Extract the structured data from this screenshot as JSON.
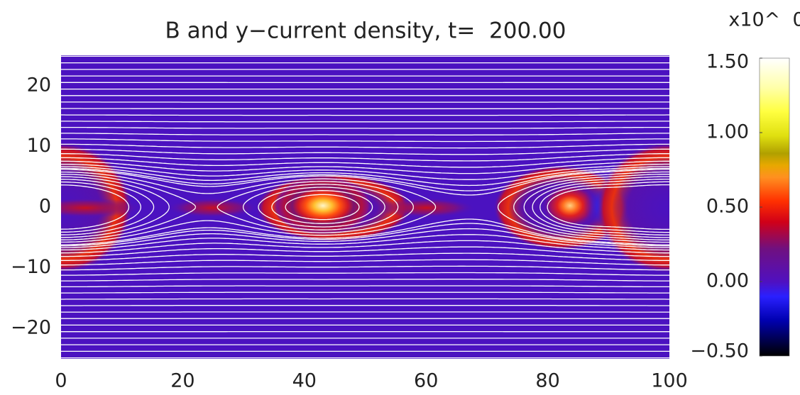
{
  "chart_data": {
    "type": "heatmap",
    "title": "B and y−current density, t=  200.00",
    "xlim": [
      0,
      100
    ],
    "ylim": [
      -25,
      25
    ],
    "xticks": [
      0,
      20,
      40,
      60,
      80,
      100
    ],
    "yticks": [
      {
        "value": -20,
        "label": "−20"
      },
      {
        "value": -10,
        "label": "−10"
      },
      0,
      10,
      20
    ],
    "colorbar": {
      "label": "x10^  0",
      "lim": [
        -0.5,
        1.5
      ],
      "ticks": [
        {
          "value": -0.5,
          "label": "−0.50"
        },
        {
          "value": 0,
          "label": "0.00"
        },
        {
          "value": 0.5,
          "label": "0.50"
        },
        {
          "value": 1,
          "label": "1.00"
        },
        {
          "value": 1.5,
          "label": "1.50"
        }
      ]
    }
  }
}
